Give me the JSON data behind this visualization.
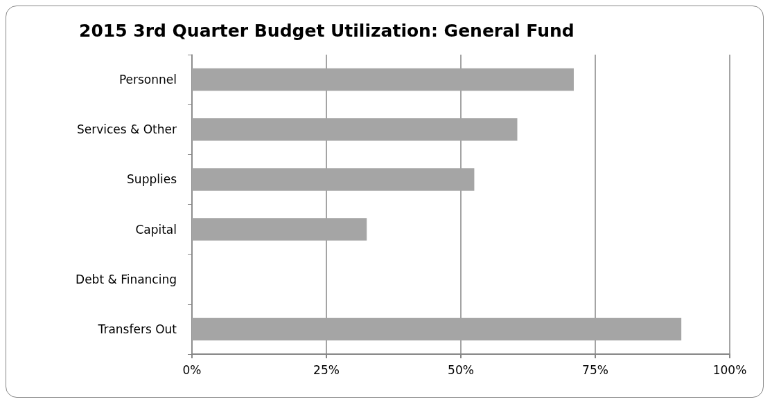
{
  "chart_data": {
    "type": "bar",
    "orientation": "horizontal",
    "title": "2015 3rd Quarter Budget Utilization: General Fund",
    "categories": [
      "Personnel",
      "Services & Other",
      "Supplies",
      "Capital",
      "Debt & Financing",
      "Transfers Out"
    ],
    "values": [
      71,
      60.5,
      52.5,
      32.5,
      0,
      91
    ],
    "color": "#a5a5a5",
    "xlim": [
      0,
      100
    ],
    "xticks": [
      {
        "value": 0,
        "label": "0%"
      },
      {
        "value": 25,
        "label": "25%"
      },
      {
        "value": 50,
        "label": "50%"
      },
      {
        "value": 75,
        "label": "75%"
      },
      {
        "value": 100,
        "label": "100%"
      }
    ],
    "grid": "x"
  }
}
